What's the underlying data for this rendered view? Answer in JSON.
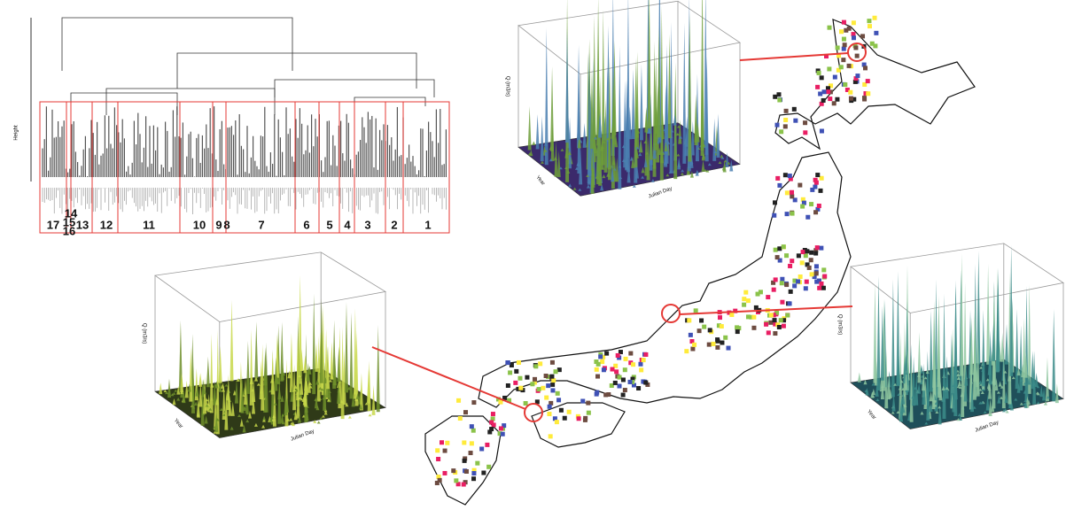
{
  "dendrogram": {
    "y_axis_label": "Height",
    "clusters": [
      "17",
      "16",
      "15",
      "14",
      "13",
      "12",
      "11",
      "10",
      "9",
      "8",
      "7",
      "6",
      "5",
      "4",
      "3",
      "2",
      "1"
    ]
  },
  "surface_plots": [
    {
      "z_label": "Q (m3/s)",
      "y_label": "Year",
      "x_label": "Julian Day"
    },
    {
      "z_label": "Q (m3/s)",
      "y_label": "Year",
      "x_label": "Julian Day"
    },
    {
      "z_label": "Q (m3/s)",
      "y_label": "Year",
      "x_label": "Julian Day"
    }
  ]
}
